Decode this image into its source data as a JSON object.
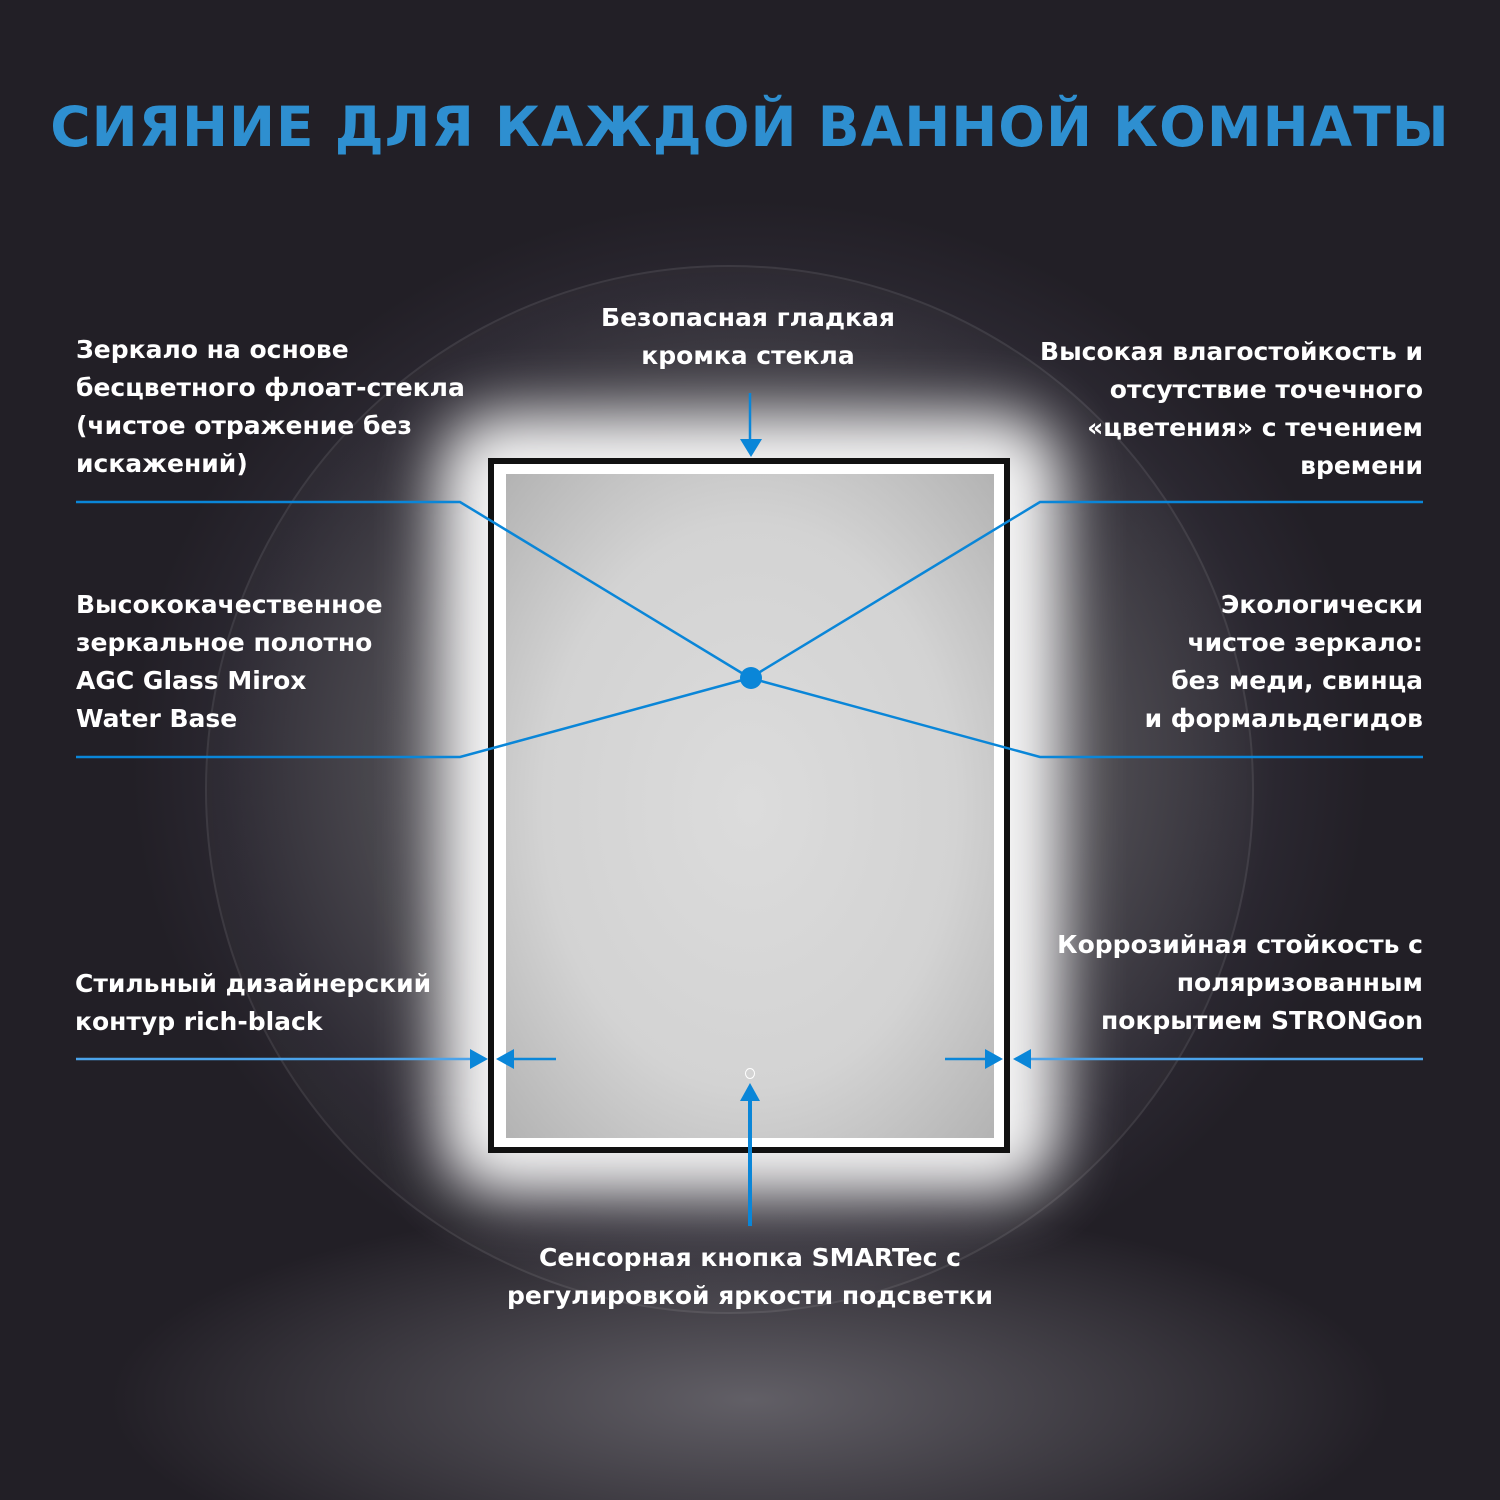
{
  "title": "СИЯНИЕ ДЛЯ КАЖДОЙ ВАННОЙ КОМНАТЫ",
  "accent_color": "#0a86d8",
  "features": {
    "top_center": [
      "Безопасная гладкая",
      "кромка стекла"
    ],
    "left_top": [
      "Зеркало на основе",
      "бесцветного флоат-стекла",
      "(чистое отражение без",
      "искажений)"
    ],
    "right_top": [
      "Высокая влагостойкость и",
      "отсутствие точечного",
      "«цветения» с течением",
      "времени"
    ],
    "left_mid": [
      "Высококачественное",
      "зеркальное полотно",
      "AGC Glass Mirox",
      "Water Base"
    ],
    "right_mid": [
      "Экологически",
      "чистое зеркало:",
      "без меди, свинца",
      "и формальдегидов"
    ],
    "left_bottom": [
      "Стильный дизайнерский",
      "контур rich-black"
    ],
    "right_bottom": [
      "Коррозийная стойкость с",
      "поляризованным",
      "покрытием STRONGon"
    ],
    "bottom_center": [
      "Сенсорная кнопка SMARTec с",
      "регулировкой яркости подсветки"
    ]
  }
}
